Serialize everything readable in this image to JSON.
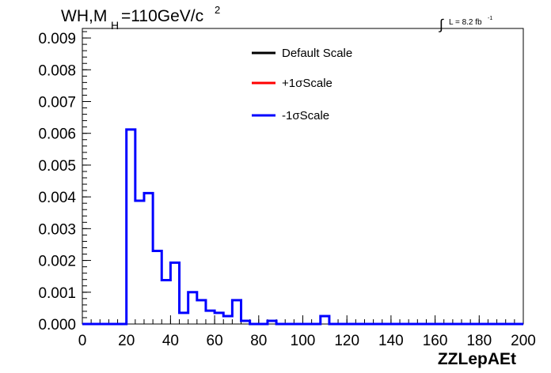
{
  "title": {
    "prefix": "WH,M",
    "subscript": "H",
    "value": "=110GeV/c",
    "superscript": "2"
  },
  "luminosity": {
    "integral_sign": "∫",
    "label": "L = 8.2 fb",
    "superscript": "-1"
  },
  "legend": [
    {
      "label": "Default Scale",
      "color": "#000000"
    },
    {
      "label": "+1σScale",
      "color": "#ff0000"
    },
    {
      "label": "-1σScale",
      "color": "#0000ff"
    }
  ],
  "chart_data": {
    "type": "histogram",
    "xlabel": "ZZLepAEt",
    "ylabel": "",
    "xlim": [
      0,
      200
    ],
    "ylim": [
      0,
      0.0093
    ],
    "x_ticks": [
      "0",
      "20",
      "40",
      "60",
      "80",
      "100",
      "120",
      "140",
      "160",
      "180",
      "200"
    ],
    "y_ticks": [
      "0.000",
      "0.001",
      "0.002",
      "0.003",
      "0.004",
      "0.005",
      "0.006",
      "0.007",
      "0.008",
      "0.009"
    ],
    "bin_width": 4,
    "bin_edges_start": 0,
    "series": [
      {
        "name": "-1σScale",
        "color": "#0000ff",
        "values": [
          0,
          0,
          0,
          0,
          0,
          0.00612,
          0.00388,
          0.00412,
          0.0023,
          0.00138,
          0.00193,
          0.00035,
          0.001,
          0.00075,
          0.00042,
          0.00035,
          0.00025,
          0.00075,
          0.0001,
          0,
          0,
          0.0001,
          0,
          0,
          0,
          0,
          0,
          0.00025,
          0,
          0,
          0,
          0,
          0,
          0,
          0,
          0,
          0,
          0,
          0,
          0,
          0,
          0,
          0,
          0,
          0,
          0,
          0,
          0,
          0,
          0
        ]
      }
    ],
    "grid": false,
    "legend_position": "top-center"
  }
}
